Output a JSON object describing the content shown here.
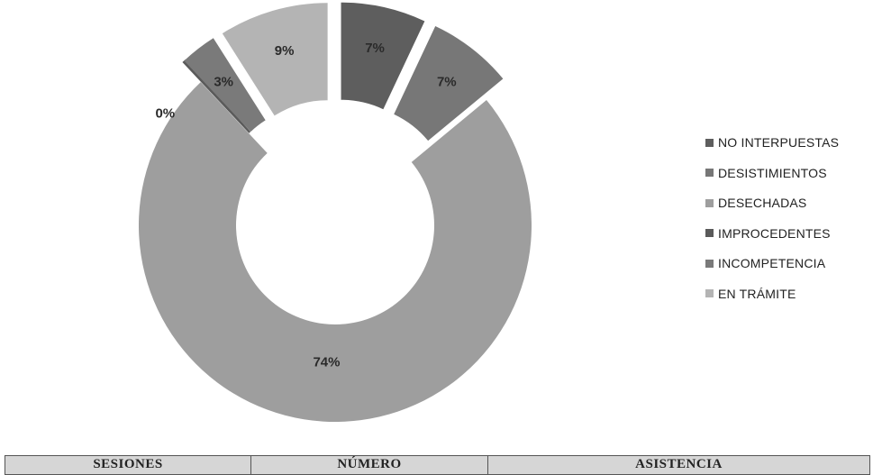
{
  "chart_data": {
    "type": "pie",
    "style": "donut",
    "categories": [
      "NO INTERPUESTAS",
      "DESISTIMIENTOS",
      "DESECHADAS",
      "IMPROCEDENTES",
      "INCOMPETENCIA",
      "EN TRÁMITE"
    ],
    "values": [
      7,
      7,
      74,
      0,
      3,
      9
    ],
    "data_labels": [
      "7%",
      "7%",
      "74%",
      "0%",
      "3%",
      "9%"
    ],
    "colors": [
      "#5e5e5e",
      "#777777",
      "#9e9e9e",
      "#5a5a5a",
      "#7a7a7a",
      "#b4b4b4"
    ],
    "legend": "right",
    "exploded": true,
    "start_angle_deg": 0
  },
  "table": {
    "headers": [
      "SESIONES",
      "NÚMERO",
      "ASISTENCIA"
    ]
  }
}
